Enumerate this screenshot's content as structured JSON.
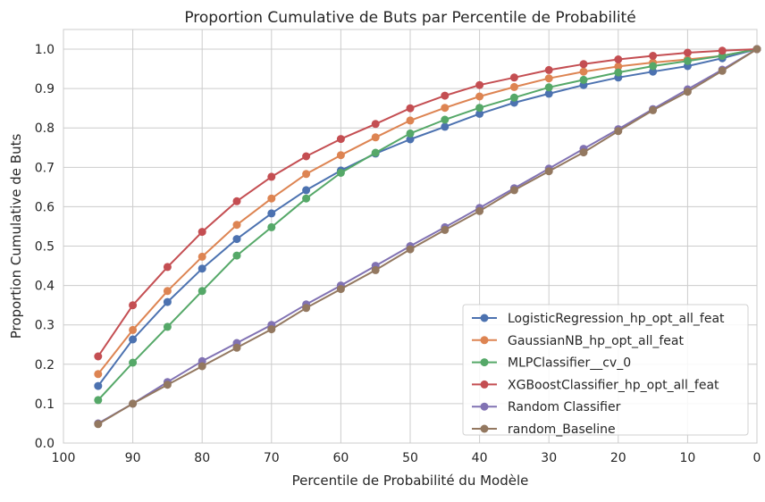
{
  "chart_data": {
    "type": "line",
    "title": "Proportion Cumulative de Buts par Percentile de Probabilité",
    "xlabel": "Percentile de Probabilité du Modèle",
    "ylabel": "Proportion Cumulative de Buts",
    "xlim": [
      100,
      0
    ],
    "ylim": [
      0,
      1.05
    ],
    "x_reversed": true,
    "grid": true,
    "legend_position": "lower-right",
    "x_ticks": [
      100,
      90,
      80,
      70,
      60,
      50,
      40,
      30,
      20,
      10,
      0
    ],
    "y_ticks": [
      0.0,
      0.1,
      0.2,
      0.3,
      0.4,
      0.5,
      0.6,
      0.7,
      0.8,
      0.9,
      1.0
    ],
    "x_tick_labels": [
      "100",
      "90",
      "80",
      "70",
      "60",
      "50",
      "40",
      "30",
      "20",
      "10",
      "0"
    ],
    "y_tick_labels": [
      "0.0",
      "0.1",
      "0.2",
      "0.3",
      "0.4",
      "0.5",
      "0.6",
      "0.7",
      "0.8",
      "0.9",
      "1.0"
    ],
    "x": [
      95,
      90,
      85,
      80,
      75,
      70,
      65,
      60,
      55,
      50,
      45,
      40,
      35,
      30,
      25,
      20,
      15,
      10,
      5,
      0
    ],
    "series": [
      {
        "name": "LogisticRegression_hp_opt_all_feat",
        "color": "#4c72b0",
        "values": [
          0.145,
          0.263,
          0.358,
          0.443,
          0.518,
          0.583,
          0.642,
          0.692,
          0.735,
          0.771,
          0.803,
          0.836,
          0.864,
          0.887,
          0.909,
          0.928,
          0.943,
          0.957,
          0.977,
          1.0
        ]
      },
      {
        "name": "GaussianNB_hp_opt_all_feat",
        "color": "#dd8452",
        "values": [
          0.175,
          0.287,
          0.386,
          0.473,
          0.554,
          0.621,
          0.683,
          0.731,
          0.776,
          0.819,
          0.851,
          0.88,
          0.904,
          0.926,
          0.943,
          0.956,
          0.966,
          0.974,
          0.983,
          1.0
        ]
      },
      {
        "name": "MLPClassifier__cv_0",
        "color": "#55a868",
        "values": [
          0.109,
          0.204,
          0.295,
          0.386,
          0.476,
          0.548,
          0.621,
          0.686,
          0.737,
          0.786,
          0.821,
          0.851,
          0.877,
          0.903,
          0.922,
          0.941,
          0.957,
          0.97,
          0.983,
          1.0
        ]
      },
      {
        "name": "XGBoostClassifier_hp_opt_all_feat",
        "color": "#c44e52",
        "values": [
          0.22,
          0.35,
          0.447,
          0.536,
          0.614,
          0.676,
          0.728,
          0.772,
          0.81,
          0.85,
          0.882,
          0.909,
          0.928,
          0.947,
          0.962,
          0.974,
          0.983,
          0.991,
          0.996,
          1.0
        ]
      },
      {
        "name": "Random Classifier",
        "color": "#8172b3",
        "values": [
          0.05,
          0.1,
          0.155,
          0.208,
          0.254,
          0.3,
          0.352,
          0.4,
          0.45,
          0.5,
          0.548,
          0.597,
          0.647,
          0.697,
          0.747,
          0.797,
          0.848,
          0.898,
          0.948,
          1.0
        ]
      },
      {
        "name": "random_Baseline",
        "color": "#937860",
        "values": [
          0.048,
          0.1,
          0.148,
          0.195,
          0.242,
          0.289,
          0.343,
          0.391,
          0.439,
          0.492,
          0.541,
          0.589,
          0.642,
          0.69,
          0.738,
          0.792,
          0.845,
          0.892,
          0.945,
          1.0
        ]
      }
    ]
  }
}
